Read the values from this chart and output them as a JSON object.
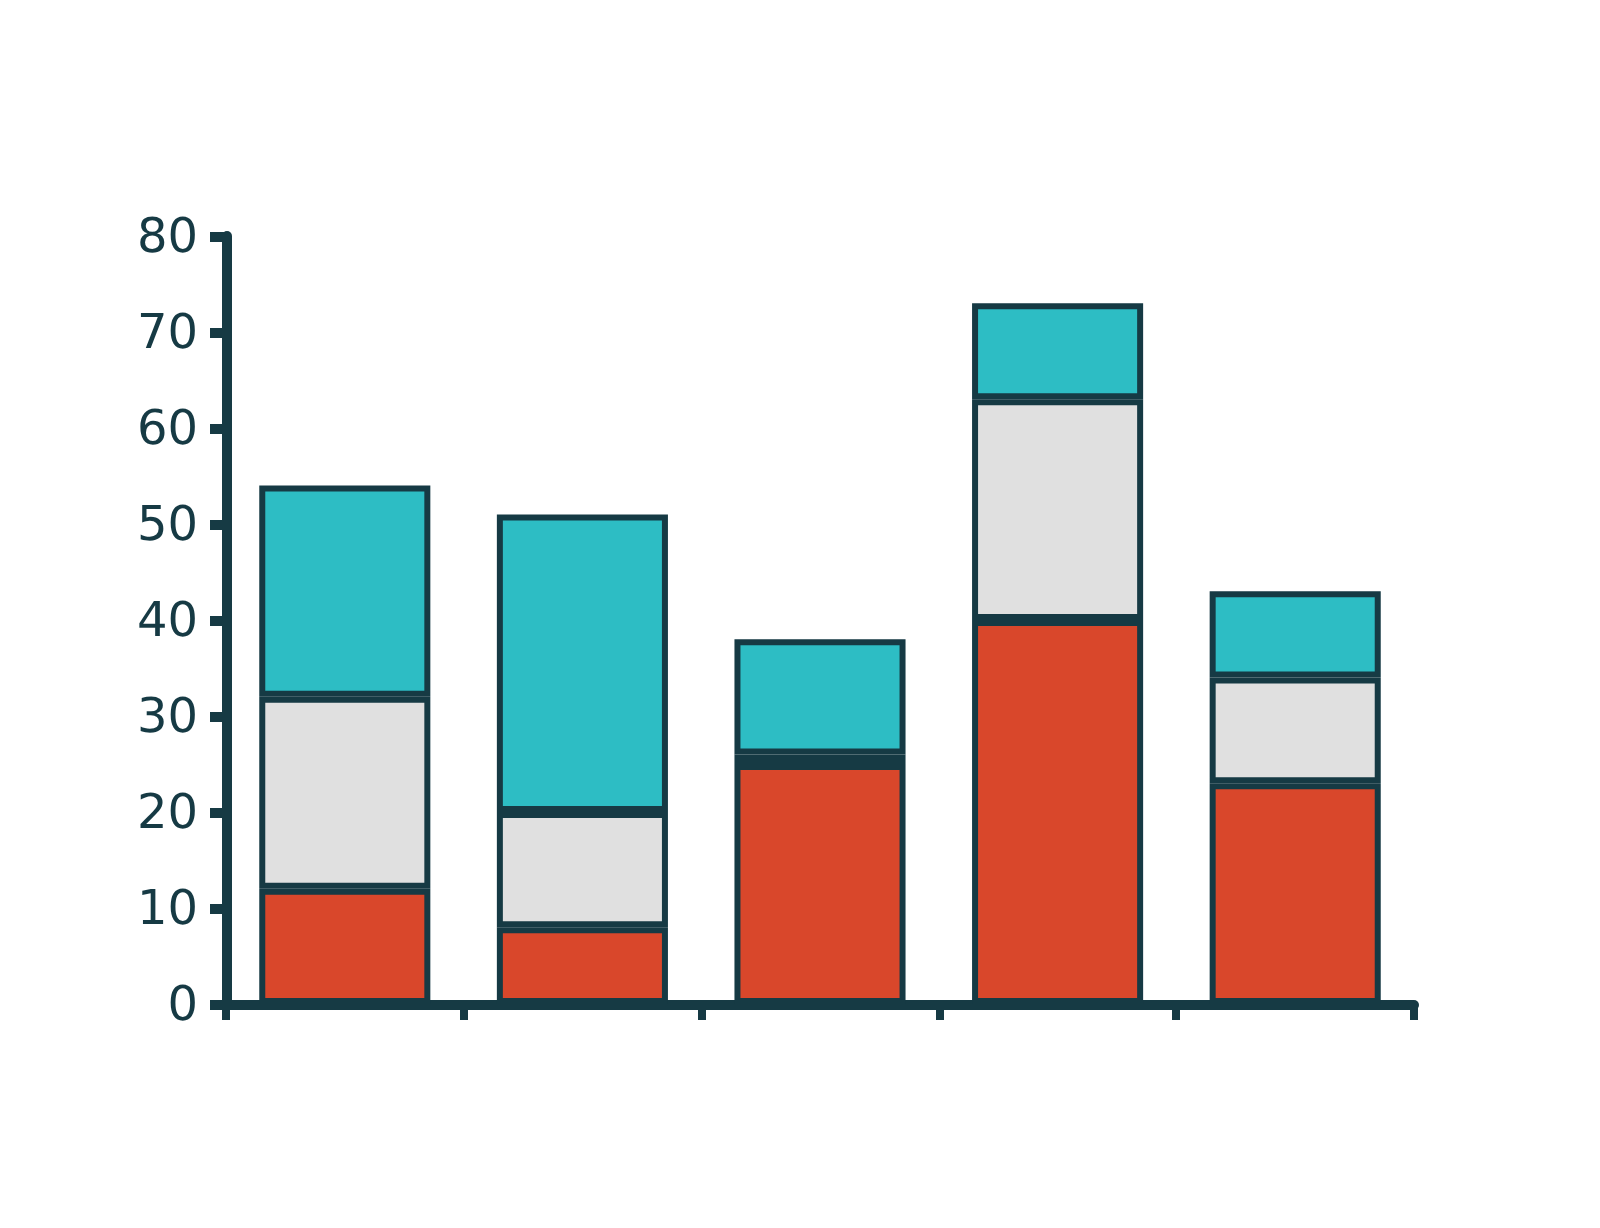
{
  "chart_data": {
    "type": "bar",
    "stacked": true,
    "categories": [
      null,
      null,
      null,
      null,
      null
    ],
    "series": [
      {
        "color": "#d9472b",
        "values": [
          12,
          8,
          25,
          40,
          23
        ]
      },
      {
        "color": "#e0e0e0",
        "values": [
          20,
          12,
          1,
          23,
          11
        ]
      },
      {
        "color": "#2dbdc4",
        "values": [
          22,
          31,
          12,
          10,
          9
        ]
      }
    ],
    "ylim": [
      0,
      80
    ],
    "yticks": [
      0,
      10,
      20,
      30,
      40,
      50,
      60,
      70,
      80
    ],
    "grid": false,
    "tick_labels": "y"
  }
}
